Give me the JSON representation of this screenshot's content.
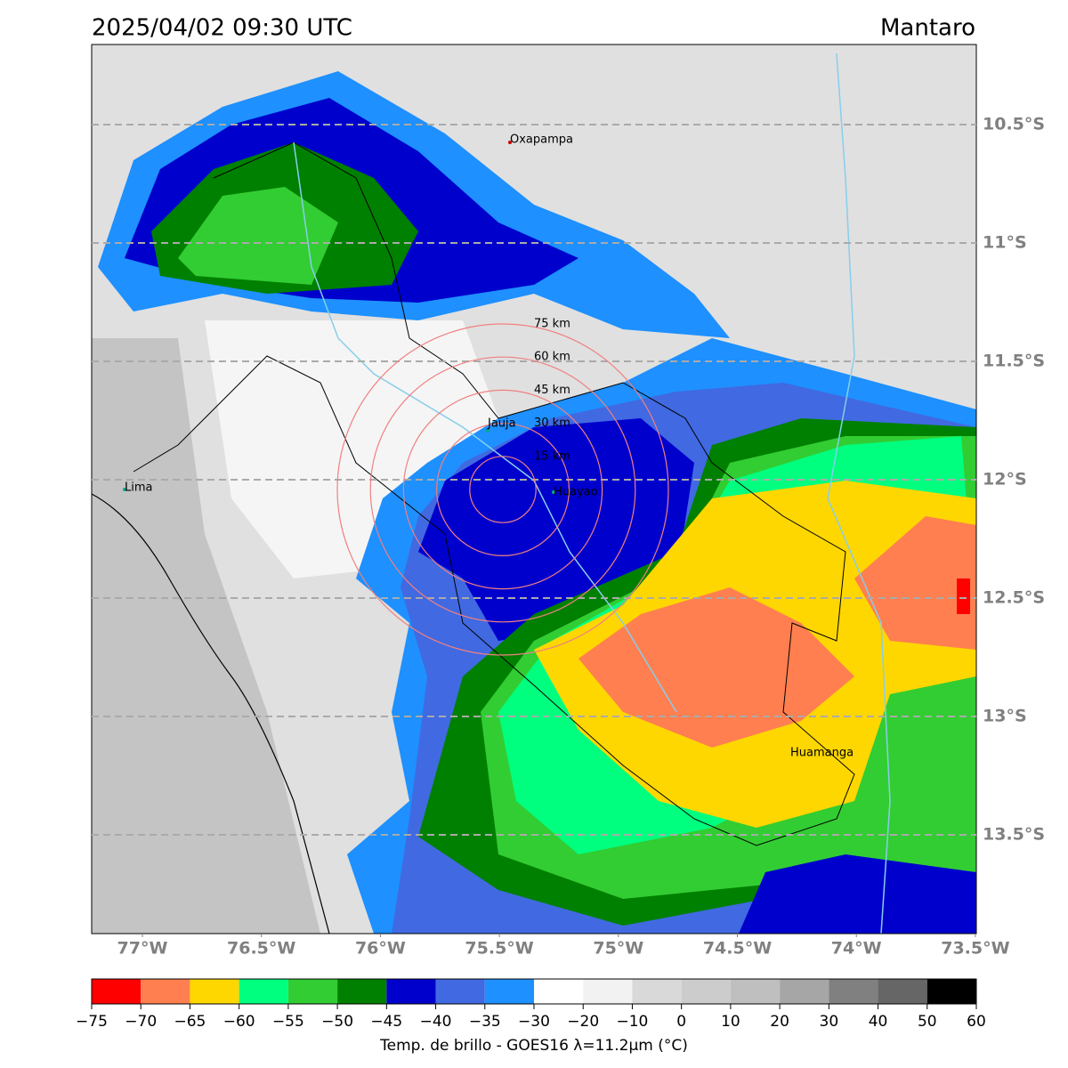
{
  "header": {
    "title": "2025/04/02 09:30 UTC",
    "region": "Mantaro"
  },
  "map": {
    "lat_ticks": [
      {
        "value": -10.5,
        "label": "10.5°S"
      },
      {
        "value": -11,
        "label": "11°S"
      },
      {
        "value": -11.5,
        "label": "11.5°S"
      },
      {
        "value": -12,
        "label": "12°S"
      },
      {
        "value": -12.5,
        "label": "12.5°S"
      },
      {
        "value": -13,
        "label": "13°S"
      },
      {
        "value": -13.5,
        "label": "13.5°S"
      }
    ],
    "lon_ticks": [
      {
        "value": -77,
        "label": "77°W"
      },
      {
        "value": -76.5,
        "label": "76.5°W"
      },
      {
        "value": -76,
        "label": "76°W"
      },
      {
        "value": -75.5,
        "label": "75.5°W"
      },
      {
        "value": -75,
        "label": "75°W"
      },
      {
        "value": -74.5,
        "label": "74.5°W"
      },
      {
        "value": -74,
        "label": "74°W"
      },
      {
        "value": -73.5,
        "label": "73.5°W"
      }
    ],
    "lat_grid": true,
    "cities": [
      "Oxapampa",
      "Jauja",
      "Lima",
      "Huayao",
      "Huamanga"
    ],
    "range_rings": [
      {
        "value": 75,
        "label": "75 km"
      },
      {
        "value": 60,
        "label": "60 km"
      },
      {
        "value": 45,
        "label": "45 km"
      },
      {
        "value": 30,
        "label": "30 km"
      },
      {
        "value": 15,
        "label": "15 km"
      }
    ]
  },
  "colorbar": {
    "ticks": [
      {
        "value": -75,
        "label": "−75"
      },
      {
        "value": -70,
        "label": "−70"
      },
      {
        "value": -65,
        "label": "−65"
      },
      {
        "value": -60,
        "label": "−60"
      },
      {
        "value": -55,
        "label": "−55"
      },
      {
        "value": -50,
        "label": "−50"
      },
      {
        "value": -45,
        "label": "−45"
      },
      {
        "value": -40,
        "label": "−40"
      },
      {
        "value": -35,
        "label": "−35"
      },
      {
        "value": -30,
        "label": "−30"
      },
      {
        "value": -20,
        "label": "−20"
      },
      {
        "value": -10,
        "label": "−10"
      },
      0,
      10,
      20,
      30,
      40,
      50,
      60
    ],
    "colors": [
      "#ff0000",
      "#ff7f50",
      "#ffd700",
      "#00ff7f",
      "#32cd32",
      "#008000",
      "#0000cd",
      "#4169e1",
      "#1e90ff",
      "#ffffff",
      "#f2f2f2",
      "#d9d9d9",
      "#cccccc",
      "#bfbfbf",
      "#a6a6a6",
      "#808080",
      "#666666",
      "#000000"
    ],
    "label": "Temp. de brillo - GOES16 λ=11.2μm (°C)"
  }
}
